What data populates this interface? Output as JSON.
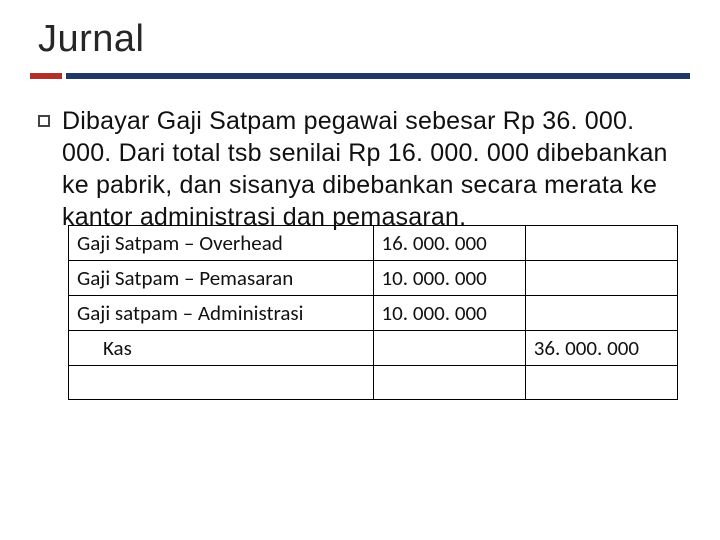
{
  "title": "Jurnal",
  "bullet": "Dibayar Gaji Satpam pegawai sebesar Rp 36. 000. 000. Dari total tsb senilai Rp 16. 000. 000 dibebankan ke pabrik, dan sisanya dibebankan secara merata ke kantor administrasi dan pemasaran.",
  "accent_color": "#b33029",
  "bar_color": "#1f3864",
  "table": {
    "rows": [
      {
        "account": "Gaji Satpam – Overhead",
        "debit": "16. 000. 000",
        "credit": "",
        "indent": false
      },
      {
        "account": "Gaji Satpam – Pemasaran",
        "debit": "10. 000. 000",
        "credit": "",
        "indent": false
      },
      {
        "account": "Gaji satpam – Administrasi",
        "debit": "10. 000. 000",
        "credit": "",
        "indent": false
      },
      {
        "account": "Kas",
        "debit": "",
        "credit": "36. 000. 000",
        "indent": true
      },
      {
        "account": "",
        "debit": "",
        "credit": "",
        "indent": false
      }
    ]
  }
}
